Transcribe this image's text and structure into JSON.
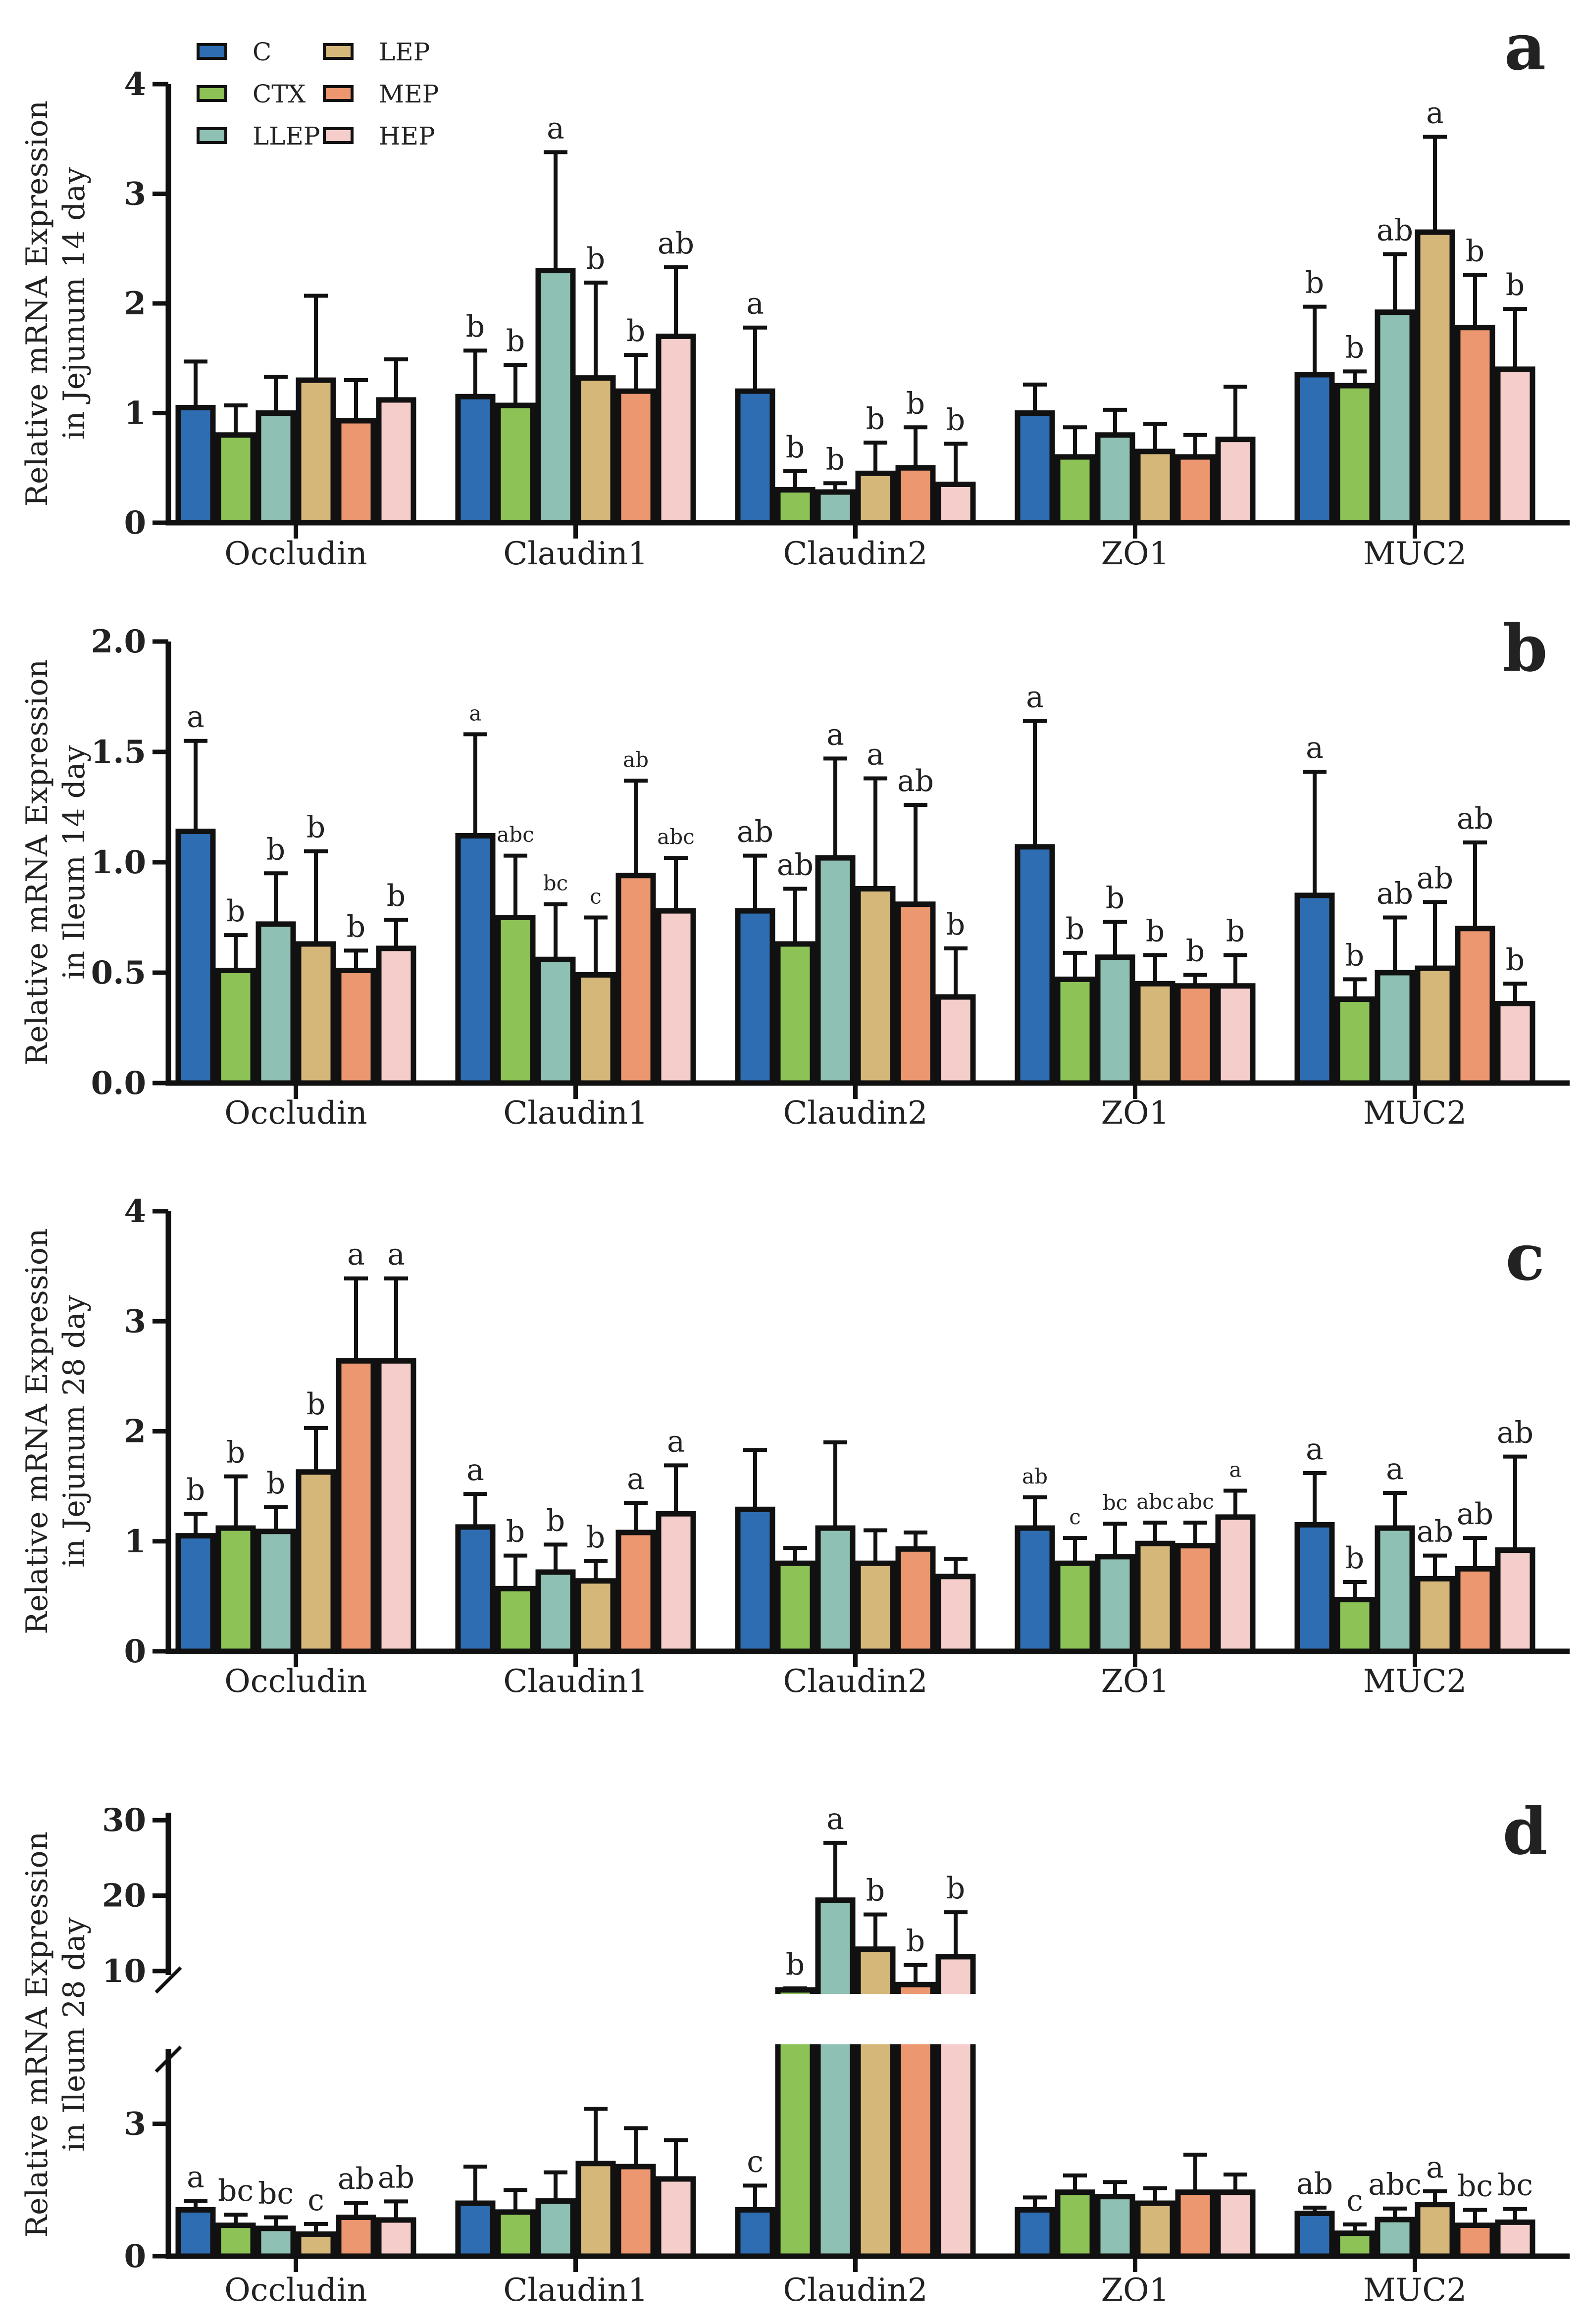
{
  "colors": {
    "C": "#2f6db3",
    "CTX": "#8cc256",
    "LLEP": "#8ec0b3",
    "LEP": "#d6b77a",
    "MEP": "#ec9770",
    "HEP": "#f5cdca"
  },
  "legend": [
    "C",
    "CTX",
    "LLEP",
    "LEP",
    "MEP",
    "HEP"
  ],
  "chart_data": [
    {
      "type": "bar",
      "panel": "a",
      "ylabel": [
        "Relative mRNA Expression",
        "in Jejunum 14 day"
      ],
      "categories": [
        "Occludin",
        "Claudin1",
        "Claudin2",
        "ZO1",
        "MUC2"
      ],
      "ylim": [
        0,
        4
      ],
      "yticks": [
        "0",
        "1",
        "2",
        "3",
        "4"
      ],
      "series": [
        {
          "name": "C",
          "values": [
            1.05,
            1.15,
            1.2,
            1.0,
            1.35
          ],
          "err": [
            0.42,
            0.42,
            0.58,
            0.26,
            0.62
          ],
          "labels": [
            "",
            "b",
            "a",
            "",
            "b"
          ]
        },
        {
          "name": "CTX",
          "values": [
            0.8,
            1.07,
            0.3,
            0.6,
            1.25
          ],
          "err": [
            0.27,
            0.37,
            0.17,
            0.27,
            0.13
          ],
          "labels": [
            "",
            "b",
            "b",
            "",
            "b"
          ]
        },
        {
          "name": "LLEP",
          "values": [
            1.0,
            2.3,
            0.28,
            0.8,
            1.92
          ],
          "err": [
            0.33,
            1.08,
            0.08,
            0.23,
            0.53
          ],
          "labels": [
            "",
            "a",
            "b",
            "",
            "ab"
          ]
        },
        {
          "name": "LEP",
          "values": [
            1.3,
            1.32,
            0.45,
            0.65,
            2.65
          ],
          "err": [
            0.77,
            0.87,
            0.28,
            0.25,
            0.87
          ],
          "labels": [
            "",
            "b",
            "b",
            "",
            "a"
          ]
        },
        {
          "name": "MEP",
          "values": [
            0.93,
            1.2,
            0.5,
            0.6,
            1.78
          ],
          "err": [
            0.37,
            0.33,
            0.37,
            0.2,
            0.48
          ],
          "labels": [
            "",
            "b",
            "b",
            "",
            "b"
          ]
        },
        {
          "name": "HEP",
          "values": [
            1.12,
            1.7,
            0.35,
            0.76,
            1.4
          ],
          "err": [
            0.37,
            0.63,
            0.37,
            0.48,
            0.55
          ],
          "labels": [
            "",
            "ab",
            "b",
            "",
            "b"
          ]
        }
      ]
    },
    {
      "type": "bar",
      "panel": "b",
      "ylabel": [
        "Relative mRNA Expression",
        "in Ileum 14 day"
      ],
      "categories": [
        "Occludin",
        "Claudin1",
        "Claudin2",
        "ZO1",
        "MUC2"
      ],
      "ylim": [
        0,
        2.0
      ],
      "yticks": [
        "0.0",
        "0.5",
        "1.0",
        "1.5",
        "2.0"
      ],
      "series": [
        {
          "name": "C",
          "values": [
            1.14,
            1.12,
            0.78,
            1.07,
            0.85
          ],
          "err": [
            0.41,
            0.46,
            0.25,
            0.57,
            0.56
          ],
          "labels": [
            "a",
            "a",
            "ab",
            "a",
            "a"
          ]
        },
        {
          "name": "CTX",
          "values": [
            0.51,
            0.75,
            0.63,
            0.47,
            0.38
          ],
          "err": [
            0.16,
            0.28,
            0.25,
            0.12,
            0.09
          ],
          "labels": [
            "b",
            "abc",
            "ab",
            "b",
            "b"
          ]
        },
        {
          "name": "LLEP",
          "values": [
            0.72,
            0.56,
            1.02,
            0.57,
            0.5
          ],
          "err": [
            0.23,
            0.25,
            0.45,
            0.16,
            0.25
          ],
          "labels": [
            "b",
            "bc",
            "a",
            "b",
            "ab"
          ]
        },
        {
          "name": "LEP",
          "values": [
            0.63,
            0.49,
            0.88,
            0.45,
            0.52
          ],
          "err": [
            0.42,
            0.26,
            0.5,
            0.13,
            0.3
          ],
          "labels": [
            "b",
            "c",
            "a",
            "b",
            "ab"
          ]
        },
        {
          "name": "MEP",
          "values": [
            0.51,
            0.94,
            0.81,
            0.44,
            0.7
          ],
          "err": [
            0.09,
            0.43,
            0.45,
            0.05,
            0.39
          ],
          "labels": [
            "b",
            "ab",
            "ab",
            "b",
            "ab"
          ]
        },
        {
          "name": "HEP",
          "values": [
            0.61,
            0.78,
            0.39,
            0.44,
            0.36
          ],
          "err": [
            0.13,
            0.24,
            0.22,
            0.14,
            0.09
          ],
          "labels": [
            "b",
            "abc",
            "b",
            "b",
            "b"
          ]
        }
      ]
    },
    {
      "type": "bar",
      "panel": "c",
      "ylabel": [
        "Relative mRNA Expression",
        "in Jejunum 28 day"
      ],
      "categories": [
        "Occludin",
        "Claudin1",
        "Claudin2",
        "ZO1",
        "MUC2"
      ],
      "ylim": [
        0,
        4
      ],
      "yticks": [
        "0",
        "1",
        "2",
        "3",
        "4"
      ],
      "series": [
        {
          "name": "C",
          "values": [
            1.05,
            1.13,
            1.29,
            1.12,
            1.15
          ],
          "err": [
            0.2,
            0.3,
            0.54,
            0.28,
            0.47
          ],
          "labels": [
            "b",
            "a",
            "",
            "ab",
            "a"
          ]
        },
        {
          "name": "CTX",
          "values": [
            1.12,
            0.57,
            0.8,
            0.8,
            0.47
          ],
          "err": [
            0.47,
            0.3,
            0.14,
            0.23,
            0.16
          ],
          "labels": [
            "b",
            "b",
            "",
            "c",
            "b"
          ]
        },
        {
          "name": "LLEP",
          "values": [
            1.09,
            0.72,
            1.12,
            0.86,
            1.12
          ],
          "err": [
            0.22,
            0.25,
            0.78,
            0.3,
            0.32
          ],
          "labels": [
            "b",
            "b",
            "",
            "bc",
            "a"
          ]
        },
        {
          "name": "LEP",
          "values": [
            1.63,
            0.64,
            0.8,
            0.98,
            0.66
          ],
          "err": [
            0.4,
            0.18,
            0.3,
            0.19,
            0.21
          ],
          "labels": [
            "b",
            "b",
            "",
            "abc",
            "ab"
          ]
        },
        {
          "name": "MEP",
          "values": [
            2.64,
            1.08,
            0.93,
            0.96,
            0.75
          ],
          "err": [
            0.75,
            0.27,
            0.15,
            0.21,
            0.28
          ],
          "labels": [
            "a",
            "a",
            "",
            "abc",
            "ab"
          ]
        },
        {
          "name": "HEP",
          "values": [
            2.64,
            1.25,
            0.68,
            1.22,
            0.92
          ],
          "err": [
            0.75,
            0.44,
            0.16,
            0.24,
            0.85
          ],
          "labels": [
            "a",
            "a",
            "",
            "a",
            "ab"
          ]
        }
      ]
    },
    {
      "type": "bar",
      "panel": "d",
      "ylabel": [
        "Relative mRNA Expression",
        "in Ileum 28 day"
      ],
      "categories": [
        "Occludin",
        "Claudin1",
        "Claudin2",
        "ZO1",
        "MUC2"
      ],
      "axis_break": {
        "lower": [
          0,
          4.8
        ],
        "upper": [
          7.5,
          31
        ]
      },
      "yticks": [
        "0",
        "3",
        "10",
        "20",
        "30"
      ],
      "series": [
        {
          "name": "C",
          "values": [
            1.05,
            1.2,
            1.05,
            1.05,
            0.97
          ],
          "err": [
            0.2,
            0.83,
            0.55,
            0.28,
            0.13
          ],
          "labels": [
            "a",
            "",
            "c",
            "",
            "ab"
          ]
        },
        {
          "name": "CTX",
          "values": [
            0.7,
            1.0,
            6.8,
            1.45,
            0.52
          ],
          "err": [
            0.24,
            0.5,
            0.9,
            0.38,
            0.2
          ],
          "labels": [
            "bc",
            "",
            "b",
            "",
            "c"
          ]
        },
        {
          "name": "LLEP",
          "values": [
            0.63,
            1.25,
            19.4,
            1.35,
            0.83
          ],
          "err": [
            0.25,
            0.65,
            7.6,
            0.33,
            0.25
          ],
          "labels": [
            "bc",
            "",
            "a",
            "",
            "abc"
          ]
        },
        {
          "name": "LEP",
          "values": [
            0.5,
            2.1,
            12.9,
            1.2,
            1.17
          ],
          "err": [
            0.23,
            1.24,
            4.6,
            0.34,
            0.3
          ],
          "labels": [
            "c",
            "",
            "b",
            "",
            "a"
          ]
        },
        {
          "name": "MEP",
          "values": [
            0.88,
            2.03,
            8.2,
            1.45,
            0.7
          ],
          "err": [
            0.33,
            0.87,
            2.6,
            0.85,
            0.35
          ],
          "labels": [
            "ab",
            "",
            "b",
            "",
            "bc"
          ]
        },
        {
          "name": "HEP",
          "values": [
            0.82,
            1.75,
            11.9,
            1.45,
            0.77
          ],
          "err": [
            0.42,
            0.88,
            5.9,
            0.4,
            0.3
          ],
          "labels": [
            "ab",
            "",
            "b",
            "",
            "bc"
          ]
        }
      ]
    }
  ]
}
